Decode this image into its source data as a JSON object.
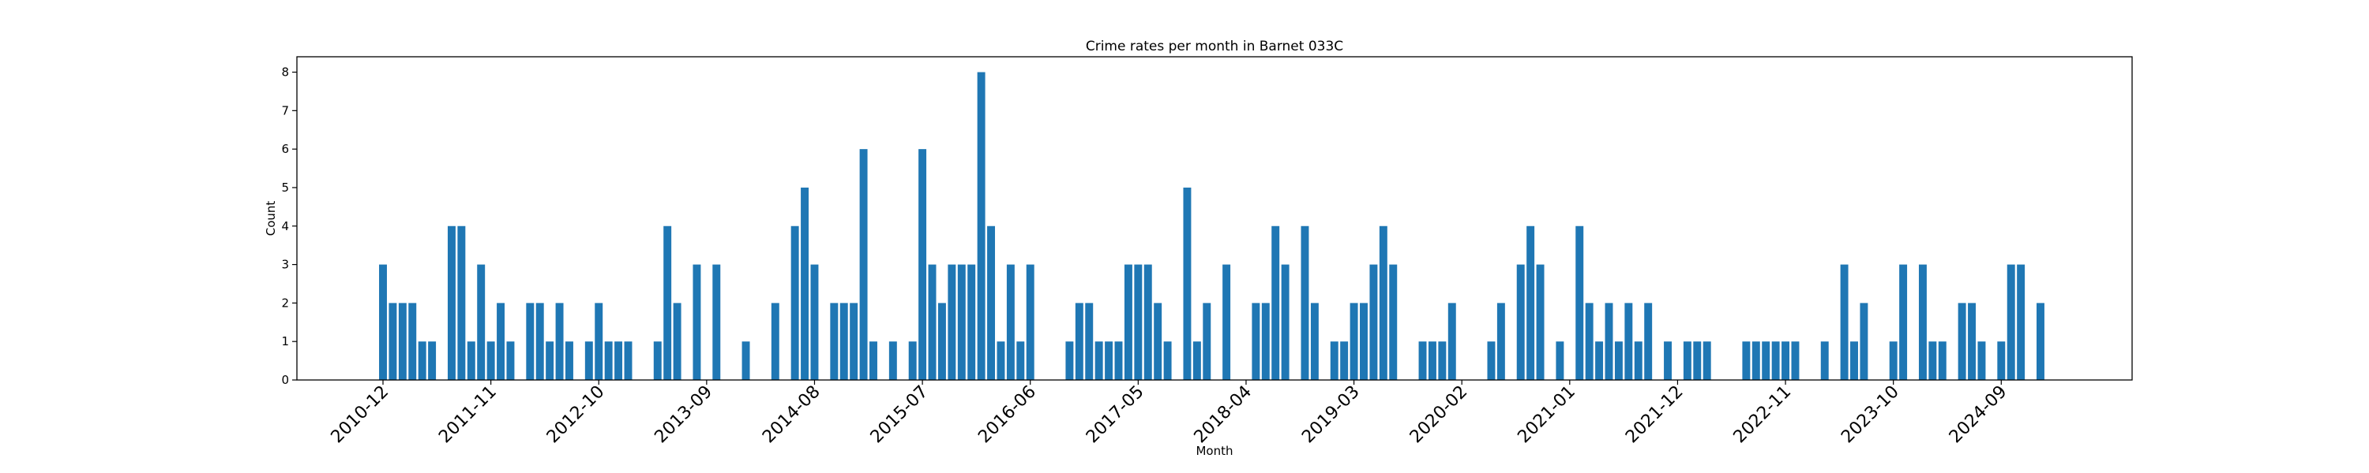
{
  "chart_data": {
    "type": "bar",
    "title": "Crime rates per month in Barnet 033C",
    "xlabel": "Month",
    "ylabel": "Count",
    "ylim": [
      0,
      8.4
    ],
    "y_ticks": [
      0,
      1,
      2,
      3,
      4,
      5,
      6,
      7,
      8
    ],
    "x_tick_labels": [
      "2010-12",
      "2011-11",
      "2012-10",
      "2013-09",
      "2014-08",
      "2015-07",
      "2016-06",
      "2017-05",
      "2018-04",
      "2019-03",
      "2020-02",
      "2021-01",
      "2021-12",
      "2022-11",
      "2023-10",
      "2024-09"
    ],
    "grid": false,
    "bar_color": "#1f77b4",
    "points": [
      {
        "x": "2010-12",
        "y": 3
      },
      {
        "x": "2011-01",
        "y": 2
      },
      {
        "x": "2011-02",
        "y": 2
      },
      {
        "x": "2011-03",
        "y": 2
      },
      {
        "x": "2011-04",
        "y": 1
      },
      {
        "x": "2011-05",
        "y": 1
      },
      {
        "x": "2011-07",
        "y": 4
      },
      {
        "x": "2011-08",
        "y": 4
      },
      {
        "x": "2011-09",
        "y": 1
      },
      {
        "x": "2011-10",
        "y": 3
      },
      {
        "x": "2011-11",
        "y": 1
      },
      {
        "x": "2011-12",
        "y": 2
      },
      {
        "x": "2012-01",
        "y": 1
      },
      {
        "x": "2012-03",
        "y": 2
      },
      {
        "x": "2012-04",
        "y": 2
      },
      {
        "x": "2012-05",
        "y": 1
      },
      {
        "x": "2012-06",
        "y": 2
      },
      {
        "x": "2012-07",
        "y": 1
      },
      {
        "x": "2012-09",
        "y": 1
      },
      {
        "x": "2012-10",
        "y": 2
      },
      {
        "x": "2012-11",
        "y": 1
      },
      {
        "x": "2012-12",
        "y": 1
      },
      {
        "x": "2013-01",
        "y": 1
      },
      {
        "x": "2013-04",
        "y": 1
      },
      {
        "x": "2013-05",
        "y": 4
      },
      {
        "x": "2013-06",
        "y": 2
      },
      {
        "x": "2013-08",
        "y": 3
      },
      {
        "x": "2013-10",
        "y": 3
      },
      {
        "x": "2014-01",
        "y": 1
      },
      {
        "x": "2014-04",
        "y": 2
      },
      {
        "x": "2014-06",
        "y": 4
      },
      {
        "x": "2014-07",
        "y": 5
      },
      {
        "x": "2014-08",
        "y": 3
      },
      {
        "x": "2014-10",
        "y": 2
      },
      {
        "x": "2014-11",
        "y": 2
      },
      {
        "x": "2014-12",
        "y": 2
      },
      {
        "x": "2015-01",
        "y": 6
      },
      {
        "x": "2015-02",
        "y": 1
      },
      {
        "x": "2015-04",
        "y": 1
      },
      {
        "x": "2015-06",
        "y": 1
      },
      {
        "x": "2015-07",
        "y": 6
      },
      {
        "x": "2015-08",
        "y": 3
      },
      {
        "x": "2015-09",
        "y": 2
      },
      {
        "x": "2015-10",
        "y": 3
      },
      {
        "x": "2015-11",
        "y": 3
      },
      {
        "x": "2015-12",
        "y": 3
      },
      {
        "x": "2016-01",
        "y": 8
      },
      {
        "x": "2016-02",
        "y": 4
      },
      {
        "x": "2016-03",
        "y": 1
      },
      {
        "x": "2016-04",
        "y": 3
      },
      {
        "x": "2016-05",
        "y": 1
      },
      {
        "x": "2016-06",
        "y": 3
      },
      {
        "x": "2016-10",
        "y": 1
      },
      {
        "x": "2016-11",
        "y": 2
      },
      {
        "x": "2016-12",
        "y": 2
      },
      {
        "x": "2017-01",
        "y": 1
      },
      {
        "x": "2017-02",
        "y": 1
      },
      {
        "x": "2017-03",
        "y": 1
      },
      {
        "x": "2017-04",
        "y": 3
      },
      {
        "x": "2017-05",
        "y": 3
      },
      {
        "x": "2017-06",
        "y": 3
      },
      {
        "x": "2017-07",
        "y": 2
      },
      {
        "x": "2017-08",
        "y": 1
      },
      {
        "x": "2017-10",
        "y": 5
      },
      {
        "x": "2017-11",
        "y": 1
      },
      {
        "x": "2017-12",
        "y": 2
      },
      {
        "x": "2018-02",
        "y": 3
      },
      {
        "x": "2018-05",
        "y": 2
      },
      {
        "x": "2018-06",
        "y": 2
      },
      {
        "x": "2018-07",
        "y": 4
      },
      {
        "x": "2018-08",
        "y": 3
      },
      {
        "x": "2018-10",
        "y": 4
      },
      {
        "x": "2018-11",
        "y": 2
      },
      {
        "x": "2019-01",
        "y": 1
      },
      {
        "x": "2019-02",
        "y": 1
      },
      {
        "x": "2019-03",
        "y": 2
      },
      {
        "x": "2019-04",
        "y": 2
      },
      {
        "x": "2019-05",
        "y": 3
      },
      {
        "x": "2019-06",
        "y": 4
      },
      {
        "x": "2019-07",
        "y": 3
      },
      {
        "x": "2019-10",
        "y": 1
      },
      {
        "x": "2019-11",
        "y": 1
      },
      {
        "x": "2019-12",
        "y": 1
      },
      {
        "x": "2020-01",
        "y": 2
      },
      {
        "x": "2020-05",
        "y": 1
      },
      {
        "x": "2020-06",
        "y": 2
      },
      {
        "x": "2020-08",
        "y": 3
      },
      {
        "x": "2020-09",
        "y": 4
      },
      {
        "x": "2020-10",
        "y": 3
      },
      {
        "x": "2020-12",
        "y": 1
      },
      {
        "x": "2021-02",
        "y": 4
      },
      {
        "x": "2021-03",
        "y": 2
      },
      {
        "x": "2021-04",
        "y": 1
      },
      {
        "x": "2021-05",
        "y": 2
      },
      {
        "x": "2021-06",
        "y": 1
      },
      {
        "x": "2021-07",
        "y": 2
      },
      {
        "x": "2021-08",
        "y": 1
      },
      {
        "x": "2021-09",
        "y": 2
      },
      {
        "x": "2021-11",
        "y": 1
      },
      {
        "x": "2022-01",
        "y": 1
      },
      {
        "x": "2022-02",
        "y": 1
      },
      {
        "x": "2022-03",
        "y": 1
      },
      {
        "x": "2022-07",
        "y": 1
      },
      {
        "x": "2022-08",
        "y": 1
      },
      {
        "x": "2022-09",
        "y": 1
      },
      {
        "x": "2022-10",
        "y": 1
      },
      {
        "x": "2022-11",
        "y": 1
      },
      {
        "x": "2022-12",
        "y": 1
      },
      {
        "x": "2023-03",
        "y": 1
      },
      {
        "x": "2023-05",
        "y": 3
      },
      {
        "x": "2023-06",
        "y": 1
      },
      {
        "x": "2023-07",
        "y": 2
      },
      {
        "x": "2023-10",
        "y": 1
      },
      {
        "x": "2023-11",
        "y": 3
      },
      {
        "x": "2024-01",
        "y": 3
      },
      {
        "x": "2024-02",
        "y": 1
      },
      {
        "x": "2024-03",
        "y": 1
      },
      {
        "x": "2024-05",
        "y": 2
      },
      {
        "x": "2024-06",
        "y": 2
      },
      {
        "x": "2024-07",
        "y": 1
      },
      {
        "x": "2024-09",
        "y": 1
      },
      {
        "x": "2024-10",
        "y": 3
      },
      {
        "x": "2024-11",
        "y": 3
      },
      {
        "x": "2025-01",
        "y": 2
      }
    ]
  }
}
